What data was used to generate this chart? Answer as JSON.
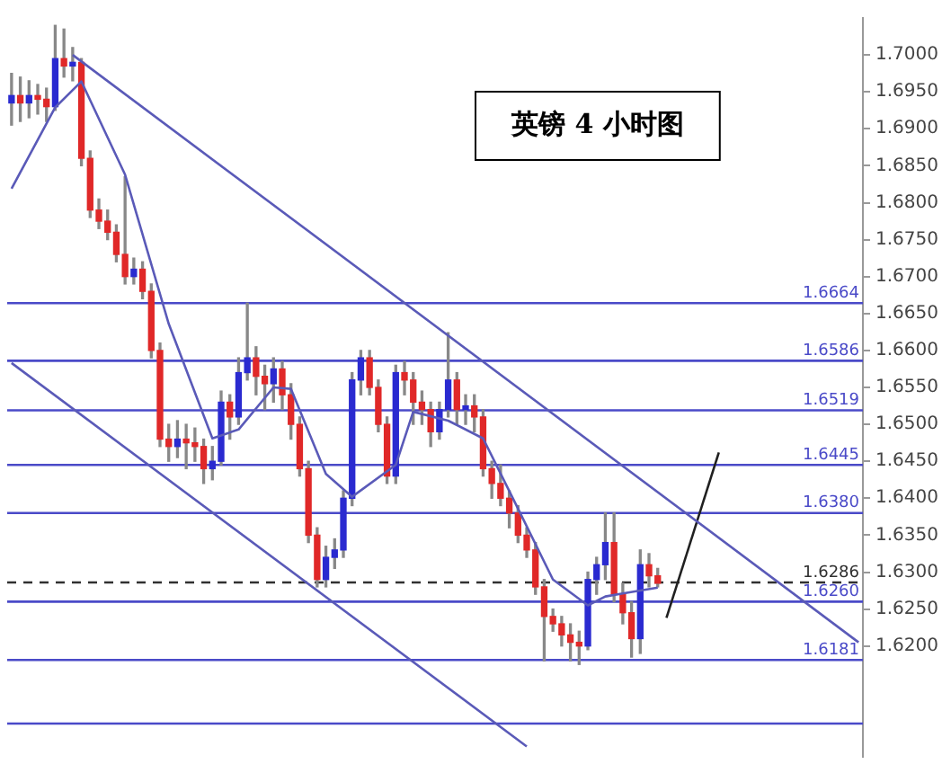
{
  "chart_data": {
    "type": "candlestick",
    "title": "英镑 4 小时图",
    "categories": [
      null,
      null,
      null,
      null,
      null,
      null,
      null,
      null,
      null,
      null,
      null,
      null,
      null,
      null,
      null,
      null,
      null,
      null,
      null,
      null,
      null,
      null,
      null,
      null,
      null,
      null,
      null,
      null,
      null,
      null,
      null,
      null,
      null,
      null,
      null,
      null,
      null,
      null,
      null,
      null,
      null,
      null,
      null,
      null,
      null,
      null,
      null,
      null,
      null,
      null,
      null,
      null,
      null,
      null,
      null,
      null,
      null,
      null,
      null,
      null,
      null,
      null,
      null,
      null,
      null,
      null,
      null,
      null,
      null,
      null,
      null,
      null,
      null,
      null,
      null,
      null,
      null,
      null,
      null,
      null,
      null,
      null,
      null,
      null,
      null,
      null,
      null,
      null,
      null,
      null,
      null,
      null,
      null,
      null,
      null,
      null,
      null,
      null
    ],
    "ohlc": [
      [
        1.6935,
        1.6975,
        1.6905,
        1.6945
      ],
      [
        1.6945,
        1.697,
        1.691,
        1.6935
      ],
      [
        1.6935,
        1.6965,
        1.6915,
        1.6945
      ],
      [
        1.6945,
        1.696,
        1.692,
        1.694
      ],
      [
        1.694,
        1.6955,
        1.691,
        1.693
      ],
      [
        1.693,
        1.704,
        1.6925,
        1.6995
      ],
      [
        1.6995,
        1.7035,
        1.697,
        1.6985
      ],
      [
        1.6985,
        1.701,
        1.6965,
        1.699
      ],
      [
        1.699,
        1.6995,
        1.685,
        1.686
      ],
      [
        1.686,
        1.687,
        1.678,
        1.679
      ],
      [
        1.679,
        1.6805,
        1.6765,
        1.6775
      ],
      [
        1.6775,
        1.679,
        1.675,
        1.676
      ],
      [
        1.676,
        1.677,
        1.672,
        1.673
      ],
      [
        1.673,
        1.6835,
        1.669,
        1.67
      ],
      [
        1.67,
        1.6725,
        1.669,
        1.671
      ],
      [
        1.671,
        1.672,
        1.667,
        1.668
      ],
      [
        1.668,
        1.669,
        1.659,
        1.66
      ],
      [
        1.66,
        1.661,
        1.647,
        1.648
      ],
      [
        1.648,
        1.65,
        1.645,
        1.647
      ],
      [
        1.647,
        1.6505,
        1.6455,
        1.648
      ],
      [
        1.648,
        1.65,
        1.644,
        1.6475
      ],
      [
        1.6475,
        1.6495,
        1.645,
        1.647
      ],
      [
        1.647,
        1.648,
        1.642,
        1.644
      ],
      [
        1.644,
        1.647,
        1.6425,
        1.645
      ],
      [
        1.645,
        1.6545,
        1.6445,
        1.653
      ],
      [
        1.653,
        1.654,
        1.648,
        1.651
      ],
      [
        1.651,
        1.659,
        1.65,
        1.657
      ],
      [
        1.657,
        1.6664,
        1.656,
        1.659
      ],
      [
        1.659,
        1.6605,
        1.654,
        1.6565
      ],
      [
        1.6565,
        1.658,
        1.652,
        1.6555
      ],
      [
        1.6555,
        1.659,
        1.653,
        1.6575
      ],
      [
        1.6575,
        1.6585,
        1.652,
        1.654
      ],
      [
        1.654,
        1.6555,
        1.648,
        1.65
      ],
      [
        1.65,
        1.651,
        1.643,
        1.644
      ],
      [
        1.644,
        1.645,
        1.634,
        1.635
      ],
      [
        1.635,
        1.636,
        1.628,
        1.629
      ],
      [
        1.629,
        1.6335,
        1.628,
        1.632
      ],
      [
        1.632,
        1.6345,
        1.6305,
        1.633
      ],
      [
        1.633,
        1.641,
        1.632,
        1.64
      ],
      [
        1.64,
        1.657,
        1.639,
        1.656
      ],
      [
        1.656,
        1.66,
        1.654,
        1.659
      ],
      [
        1.659,
        1.66,
        1.654,
        1.655
      ],
      [
        1.655,
        1.656,
        1.649,
        1.65
      ],
      [
        1.65,
        1.651,
        1.642,
        1.643
      ],
      [
        1.643,
        1.658,
        1.642,
        1.657
      ],
      [
        1.657,
        1.6585,
        1.654,
        1.656
      ],
      [
        1.656,
        1.657,
        1.65,
        1.653
      ],
      [
        1.653,
        1.6545,
        1.65,
        1.652
      ],
      [
        1.652,
        1.653,
        1.647,
        1.649
      ],
      [
        1.649,
        1.653,
        1.648,
        1.652
      ],
      [
        1.652,
        1.6624,
        1.651,
        1.656
      ],
      [
        1.656,
        1.657,
        1.65,
        1.652
      ],
      [
        1.652,
        1.654,
        1.65,
        1.6525
      ],
      [
        1.6525,
        1.654,
        1.649,
        1.651
      ],
      [
        1.651,
        1.652,
        1.643,
        1.644
      ],
      [
        1.644,
        1.645,
        1.64,
        1.642
      ],
      [
        1.642,
        1.6445,
        1.639,
        1.64
      ],
      [
        1.64,
        1.641,
        1.636,
        1.638
      ],
      [
        1.638,
        1.639,
        1.634,
        1.635
      ],
      [
        1.635,
        1.636,
        1.632,
        1.633
      ],
      [
        1.633,
        1.634,
        1.627,
        1.628
      ],
      [
        1.628,
        1.629,
        1.618,
        1.624
      ],
      [
        1.624,
        1.625,
        1.622,
        1.623
      ],
      [
        1.623,
        1.624,
        1.62,
        1.6215
      ],
      [
        1.6215,
        1.623,
        1.618,
        1.6205
      ],
      [
        1.6205,
        1.622,
        1.6175,
        1.62
      ],
      [
        1.62,
        1.63,
        1.6195,
        1.629
      ],
      [
        1.629,
        1.632,
        1.627,
        1.631
      ],
      [
        1.631,
        1.638,
        1.629,
        1.634
      ],
      [
        1.634,
        1.638,
        1.626,
        1.627
      ],
      [
        1.627,
        1.6285,
        1.623,
        1.6245
      ],
      [
        1.6245,
        1.626,
        1.6185,
        1.621
      ],
      [
        1.621,
        1.633,
        1.619,
        1.631
      ],
      [
        1.631,
        1.6325,
        1.628,
        1.6295
      ],
      [
        1.6295,
        1.6305,
        1.628,
        1.6285
      ],
      null,
      null,
      null,
      null,
      null,
      null,
      null,
      null,
      null,
      null,
      null,
      null,
      null,
      null,
      null,
      null,
      null,
      null,
      null,
      null,
      null,
      null,
      null
    ],
    "colors": [
      "#2a2ad0",
      "#e02828",
      "#2a2ad0",
      "#e02828",
      "#e02828",
      "#2a2ad0",
      "#e02828",
      "#2a2ad0",
      "#e02828",
      "#e02828",
      "#e02828",
      "#e02828",
      "#e02828",
      "#e02828",
      "#2a2ad0",
      "#e02828",
      "#e02828",
      "#e02828",
      "#e02828",
      "#2a2ad0",
      "#e02828",
      "#e02828",
      "#e02828",
      "#2a2ad0",
      "#2a2ad0",
      "#e02828",
      "#2a2ad0",
      "#2a2ad0",
      "#e02828",
      "#e02828",
      "#2a2ad0",
      "#e02828",
      "#e02828",
      "#e02828",
      "#e02828",
      "#e02828",
      "#2a2ad0",
      "#2a2ad0",
      "#2a2ad0",
      "#2a2ad0",
      "#2a2ad0",
      "#e02828",
      "#e02828",
      "#e02828",
      "#2a2ad0",
      "#e02828",
      "#e02828",
      "#e02828",
      "#e02828",
      "#2a2ad0",
      "#2a2ad0",
      "#e02828",
      "#2a2ad0",
      "#e02828",
      "#e02828",
      "#e02828",
      "#e02828",
      "#e02828",
      "#e02828",
      "#e02828",
      "#e02828",
      "#e02828",
      "#e02828",
      "#e02828",
      "#e02828",
      "#e02828",
      "#2a2ad0",
      "#2a2ad0",
      "#2a2ad0",
      "#e02828",
      "#e02828",
      "#e02828",
      "#2a2ad0",
      "#e02828",
      "#e02828",
      null,
      null,
      null,
      null,
      null,
      null,
      null,
      null,
      null,
      null,
      null,
      null,
      null,
      null,
      null,
      null,
      null,
      null,
      null,
      null,
      null,
      null,
      null
    ],
    "series": [
      {
        "type": "line",
        "color": "#5a5ab8",
        "values": [
          1.6819,
          null,
          null,
          null,
          null,
          1.6929,
          null,
          null,
          1.6964,
          null,
          null,
          null,
          null,
          1.6838,
          null,
          null,
          null,
          null,
          1.6636,
          null,
          null,
          null,
          null,
          1.6481,
          null,
          null,
          1.6493,
          null,
          null,
          null,
          1.655,
          null,
          1.6548,
          null,
          null,
          null,
          1.6433,
          null,
          null,
          1.6402,
          null,
          null,
          null,
          null,
          1.6445,
          null,
          1.6517,
          null,
          null,
          null,
          1.6505,
          null,
          null,
          null,
          1.6481,
          null,
          null,
          null,
          1.6386,
          null,
          null,
          null,
          1.629,
          null,
          null,
          null,
          1.6255,
          null,
          1.6267,
          null,
          1.6271,
          null,
          null,
          null,
          1.6279,
          null,
          null,
          null,
          null,
          null,
          null,
          null,
          null,
          null,
          null,
          null,
          null,
          null,
          null,
          null,
          null,
          null,
          null,
          null,
          null,
          null,
          null,
          null
        ]
      },
      {
        "type": "line",
        "color": "#5a5ab8",
        "values": [
          null,
          null,
          null,
          null,
          null,
          null,
          null,
          1.7,
          null,
          null,
          null,
          null,
          null,
          null,
          null,
          null,
          null,
          null,
          null,
          null,
          null,
          null,
          null,
          null,
          null,
          null,
          null,
          null,
          null,
          null,
          null,
          null,
          null,
          null,
          null,
          null,
          null,
          null,
          null,
          null,
          null,
          null,
          null,
          null,
          null,
          null,
          null,
          null,
          null,
          null,
          null,
          null,
          null,
          null,
          null,
          null,
          null,
          null,
          null,
          null,
          null,
          null,
          null,
          null,
          null,
          null,
          null,
          null,
          null,
          null,
          null,
          null,
          null,
          null,
          null,
          null,
          null,
          null,
          null,
          null,
          null,
          null,
          null,
          null,
          null,
          null,
          null,
          null,
          null,
          null,
          null,
          null,
          null,
          null,
          null,
          null,
          null,
          1.6205
        ]
      },
      {
        "type": "line",
        "color": "#5a5ab8",
        "values": [
          1.6583,
          null,
          null,
          null,
          null,
          null,
          null,
          null,
          null,
          null,
          null,
          null,
          null,
          null,
          null,
          null,
          null,
          null,
          null,
          null,
          null,
          null,
          null,
          null,
          null,
          null,
          null,
          null,
          null,
          null,
          null,
          null,
          null,
          null,
          null,
          null,
          null,
          null,
          null,
          null,
          null,
          null,
          null,
          null,
          null,
          null,
          null,
          null,
          null,
          null,
          null,
          null,
          null,
          null,
          null,
          null,
          null,
          null,
          null,
          1.6064,
          null,
          null,
          null,
          null,
          null,
          null,
          null,
          null,
          null,
          null,
          null,
          null,
          null,
          null,
          null,
          null,
          null,
          null,
          null,
          null,
          null,
          null,
          null,
          null,
          null,
          null,
          null,
          null,
          null,
          null,
          null,
          null,
          null,
          null,
          null,
          null,
          null,
          null
        ]
      },
      {
        "type": "line",
        "color": "#202020",
        "values": [
          null,
          null,
          null,
          null,
          null,
          null,
          null,
          null,
          null,
          null,
          null,
          null,
          null,
          null,
          null,
          null,
          null,
          null,
          null,
          null,
          null,
          null,
          null,
          null,
          null,
          null,
          null,
          null,
          null,
          null,
          null,
          null,
          null,
          null,
          null,
          null,
          null,
          null,
          null,
          null,
          null,
          null,
          null,
          null,
          null,
          null,
          null,
          null,
          null,
          null,
          null,
          null,
          null,
          null,
          null,
          null,
          null,
          null,
          null,
          null,
          null,
          null,
          null,
          null,
          null,
          null,
          null,
          null,
          null,
          null,
          null,
          null,
          null,
          null,
          null,
          1.6238,
          null,
          null,
          null,
          null,
          null,
          1.6462,
          null,
          null,
          null,
          null,
          null,
          null,
          null,
          null,
          null,
          null,
          null,
          null,
          null,
          null,
          null,
          null
        ]
      }
    ],
    "ylim": [
      1.605,
      1.705
    ],
    "yticks": [
      {
        "value": 1.62,
        "label": "1.6200"
      },
      {
        "value": 1.625,
        "label": "1.6250"
      },
      {
        "value": 1.63,
        "label": "1.6300"
      },
      {
        "value": 1.635,
        "label": "1.6350"
      },
      {
        "value": 1.64,
        "label": "1.6400"
      },
      {
        "value": 1.645,
        "label": "1.6450"
      },
      {
        "value": 1.65,
        "label": "1.6500"
      },
      {
        "value": 1.655,
        "label": "1.6550"
      },
      {
        "value": 1.66,
        "label": "1.6600"
      },
      {
        "value": 1.665,
        "label": "1.6650"
      },
      {
        "value": 1.67,
        "label": "1.6700"
      },
      {
        "value": 1.675,
        "label": "1.6750"
      },
      {
        "value": 1.68,
        "label": "1.6800"
      },
      {
        "value": 1.685,
        "label": "1.6850"
      },
      {
        "value": 1.69,
        "label": "1.6900"
      },
      {
        "value": 1.695,
        "label": "1.6950"
      },
      {
        "value": 1.7,
        "label": "1.7000"
      }
    ],
    "tick_labels": "y",
    "grid": false,
    "legend": false,
    "marker": "none",
    "ref_lines": [
      {
        "axis": "y",
        "value": 1.6664,
        "label": "1.6664",
        "color": "#4a4ac8"
      },
      {
        "axis": "y",
        "value": 1.6586,
        "label": "1.6586",
        "color": "#4a4ac8"
      },
      {
        "axis": "y",
        "value": 1.6519,
        "label": "1.6519",
        "color": "#4a4ac8"
      },
      {
        "axis": "y",
        "value": 1.6445,
        "label": "1.6445",
        "color": "#4a4ac8"
      },
      {
        "axis": "y",
        "value": 1.638,
        "label": "1.6380",
        "color": "#4a4ac8"
      },
      {
        "axis": "y",
        "value": 1.6286,
        "label": "1.6286",
        "color": "#303030",
        "line_style": "dashed"
      },
      {
        "axis": "y",
        "value": 1.626,
        "label": "1.6260",
        "color": "#4a4ac8"
      },
      {
        "axis": "y",
        "value": 1.6181,
        "label": "1.6181",
        "color": "#4a4ac8"
      },
      {
        "axis": "y",
        "value": 1.6095,
        "label": null,
        "color": "#4a4ac8"
      }
    ]
  }
}
